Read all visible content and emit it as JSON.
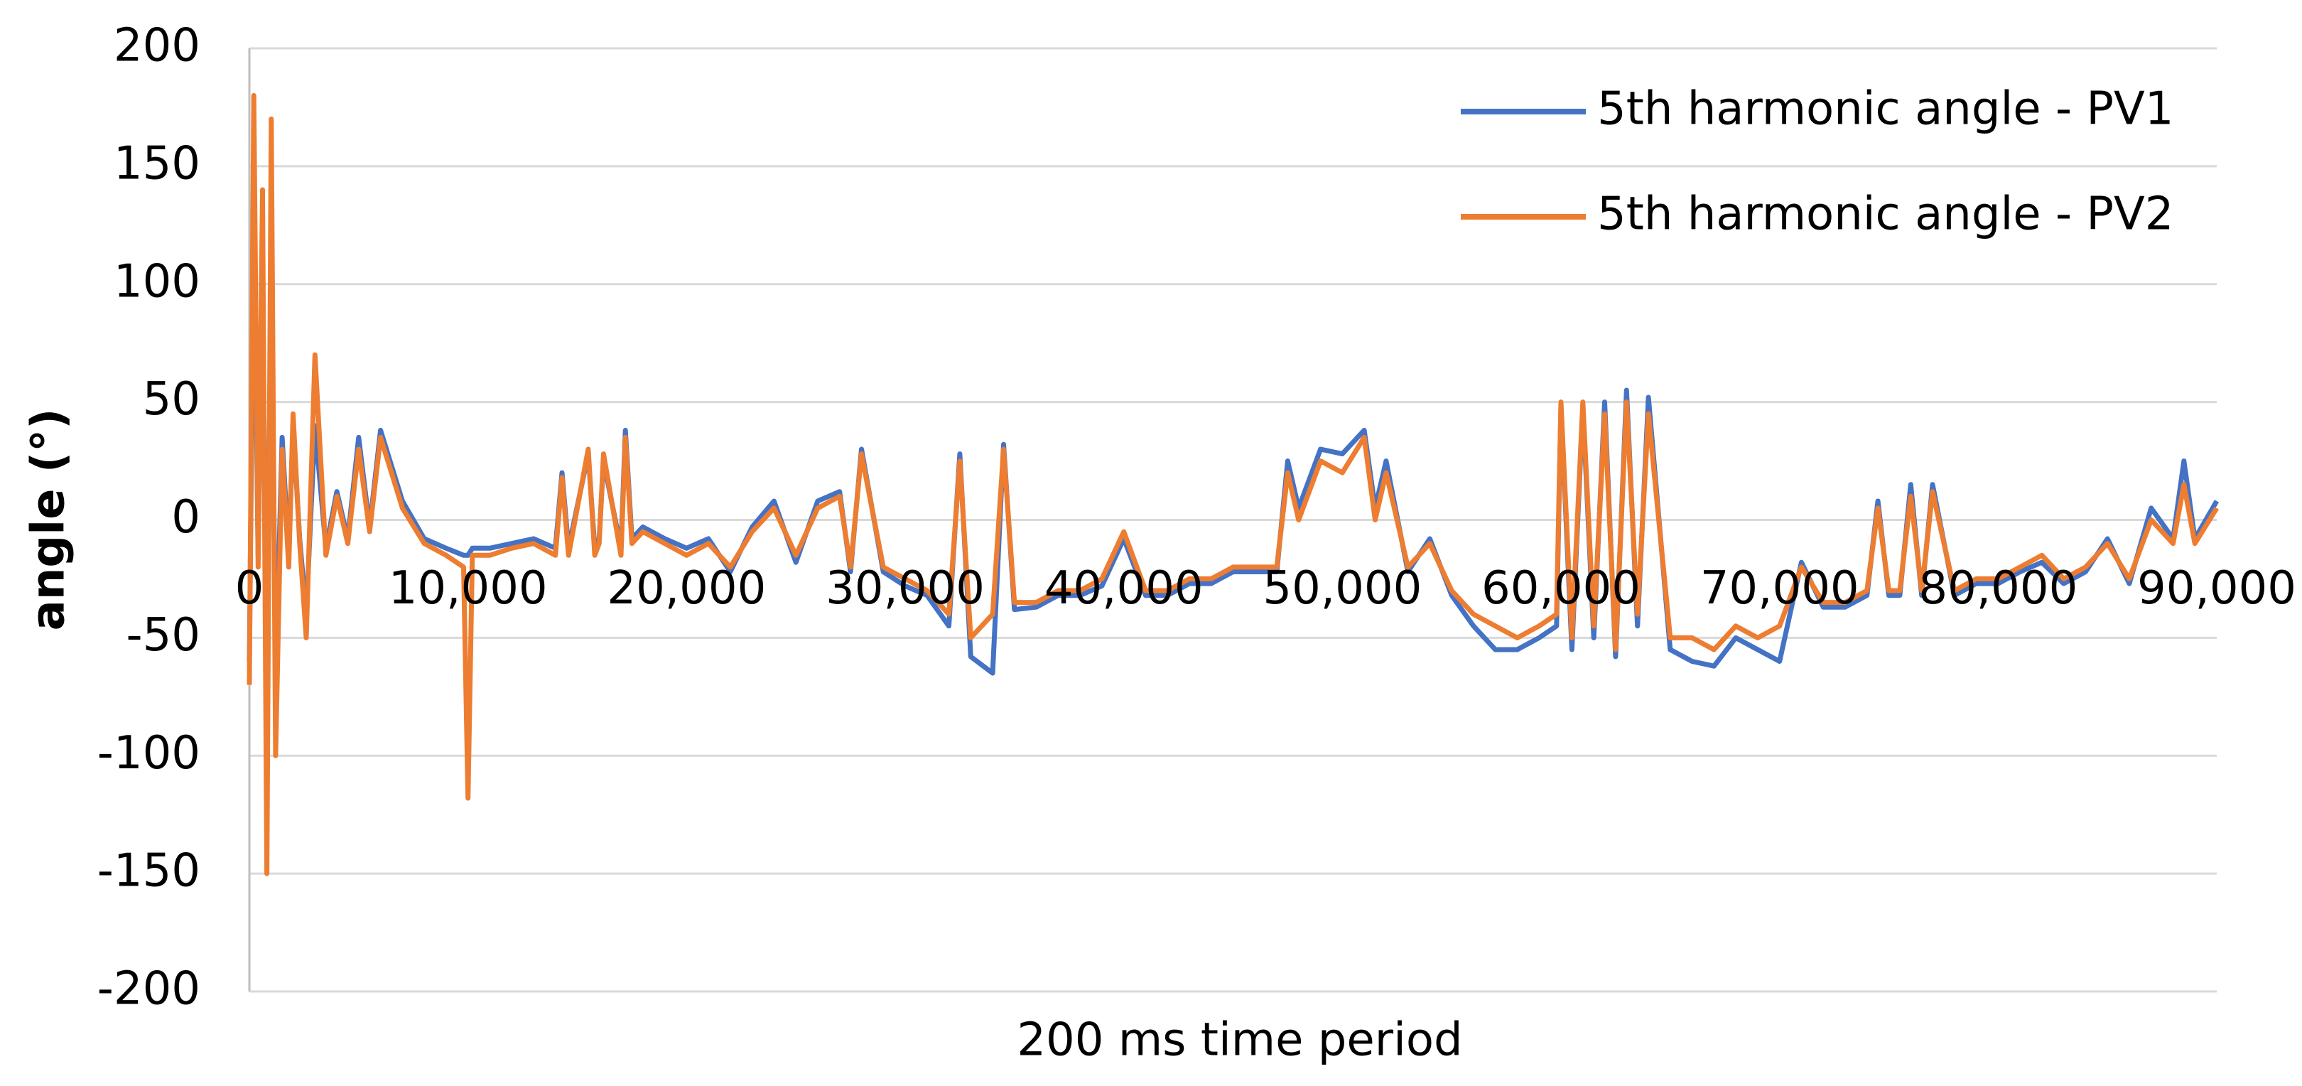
{
  "chart_data": {
    "type": "line",
    "x_label": "200 ms time period",
    "y_label": "angle (°)",
    "x": [
      0,
      200,
      400,
      600,
      800,
      1000,
      1200,
      1500,
      1800,
      2000,
      2300,
      2600,
      3000,
      3500,
      4000,
      4500,
      5000,
      5500,
      6000,
      7000,
      8000,
      9000,
      9800,
      10000,
      10200,
      11000,
      12000,
      13000,
      14000,
      14300,
      14600,
      15500,
      15800,
      16000,
      16200,
      17000,
      17200,
      17500,
      18000,
      19000,
      20000,
      21000,
      22000,
      23000,
      24000,
      25000,
      26000,
      27000,
      27500,
      28000,
      29000,
      30000,
      31000,
      32000,
      32500,
      33000,
      34000,
      34500,
      35000,
      36000,
      37000,
      38000,
      39000,
      40000,
      41000,
      42000,
      43000,
      44000,
      45000,
      46000,
      47000,
      47500,
      48000,
      49000,
      50000,
      51000,
      51500,
      52000,
      53000,
      54000,
      55000,
      56000,
      57000,
      58000,
      59000,
      59800,
      60000,
      60500,
      61000,
      61500,
      62000,
      62500,
      63000,
      63500,
      64000,
      65000,
      66000,
      67000,
      68000,
      69000,
      70000,
      71000,
      72000,
      73000,
      74000,
      74500,
      75000,
      75500,
      76000,
      76500,
      77000,
      78000,
      79000,
      80000,
      81000,
      82000,
      83000,
      84000,
      85000,
      86000,
      87000,
      88000,
      88500,
      89000,
      90000
    ],
    "series": [
      {
        "name": "5th harmonic angle - PV1",
        "color": "#4472c4",
        "values": [
          -60,
          130,
          -15,
          110,
          -90,
          120,
          -70,
          35,
          -15,
          40,
          -8,
          -40,
          40,
          -12,
          12,
          -8,
          35,
          -3,
          38,
          8,
          -8,
          -12,
          -15,
          -15,
          -12,
          -12,
          -10,
          -8,
          -12,
          20,
          -12,
          28,
          -12,
          -8,
          25,
          -12,
          38,
          -8,
          -3,
          -8,
          -12,
          -8,
          -22,
          -3,
          8,
          -18,
          8,
          12,
          -22,
          30,
          -22,
          -28,
          -32,
          -45,
          28,
          -58,
          -65,
          32,
          -38,
          -37,
          -32,
          -32,
          -28,
          -8,
          -32,
          -32,
          -27,
          -27,
          -22,
          -22,
          -22,
          25,
          5,
          30,
          28,
          38,
          5,
          25,
          -22,
          -8,
          -32,
          -45,
          -55,
          -55,
          -50,
          -45,
          48,
          -55,
          48,
          -50,
          50,
          -58,
          55,
          -45,
          52,
          -55,
          -60,
          -62,
          -50,
          -55,
          -60,
          -18,
          -37,
          -37,
          -32,
          8,
          -32,
          -32,
          15,
          -32,
          15,
          -32,
          -27,
          -27,
          -22,
          -18,
          -27,
          -22,
          -8,
          -27,
          5,
          -8,
          25,
          -8,
          8
        ]
      },
      {
        "name": "5th harmonic angle - PV2",
        "color": "#ed7d31",
        "values": [
          -70,
          180,
          -20,
          140,
          -150,
          170,
          -100,
          30,
          -20,
          45,
          -10,
          -50,
          70,
          -15,
          10,
          -10,
          30,
          -5,
          35,
          5,
          -10,
          -15,
          -20,
          -118,
          -15,
          -15,
          -12,
          -10,
          -15,
          18,
          -15,
          30,
          -15,
          -10,
          28,
          -15,
          35,
          -10,
          -5,
          -10,
          -15,
          -10,
          -20,
          -5,
          5,
          -15,
          5,
          10,
          -20,
          28,
          -20,
          -25,
          -30,
          -40,
          25,
          -50,
          -40,
          30,
          -35,
          -35,
          -30,
          -30,
          -25,
          -5,
          -30,
          -30,
          -25,
          -25,
          -20,
          -20,
          -20,
          20,
          0,
          25,
          20,
          35,
          0,
          20,
          -20,
          -10,
          -30,
          -40,
          -45,
          -50,
          -45,
          -40,
          50,
          -50,
          50,
          -45,
          45,
          -55,
          50,
          -40,
          45,
          -50,
          -50,
          -55,
          -45,
          -50,
          -45,
          -20,
          -35,
          -35,
          -30,
          5,
          -30,
          -30,
          10,
          -30,
          12,
          -30,
          -25,
          -25,
          -20,
          -15,
          -25,
          -20,
          -10,
          -25,
          0,
          -10,
          15,
          -10,
          5
        ]
      }
    ],
    "xlim": [
      0,
      90000
    ],
    "xticks": [
      0,
      {
        "value": 10000,
        "label": "10,000"
      },
      {
        "value": 20000,
        "label": "20,000"
      },
      {
        "value": 30000,
        "label": "30,000"
      },
      {
        "value": 40000,
        "label": "40,000"
      },
      {
        "value": 50000,
        "label": "50,000"
      },
      {
        "value": 60000,
        "label": "60,000"
      },
      {
        "value": 70000,
        "label": "70,000"
      },
      {
        "value": 80000,
        "label": "80,000"
      },
      {
        "value": 90000,
        "label": "90,000"
      }
    ],
    "ylim": [
      -200,
      200
    ],
    "yticks": [
      -200,
      -150,
      -100,
      -50,
      0,
      50,
      100,
      150,
      200
    ],
    "grid": true,
    "legend": "upper right"
  }
}
